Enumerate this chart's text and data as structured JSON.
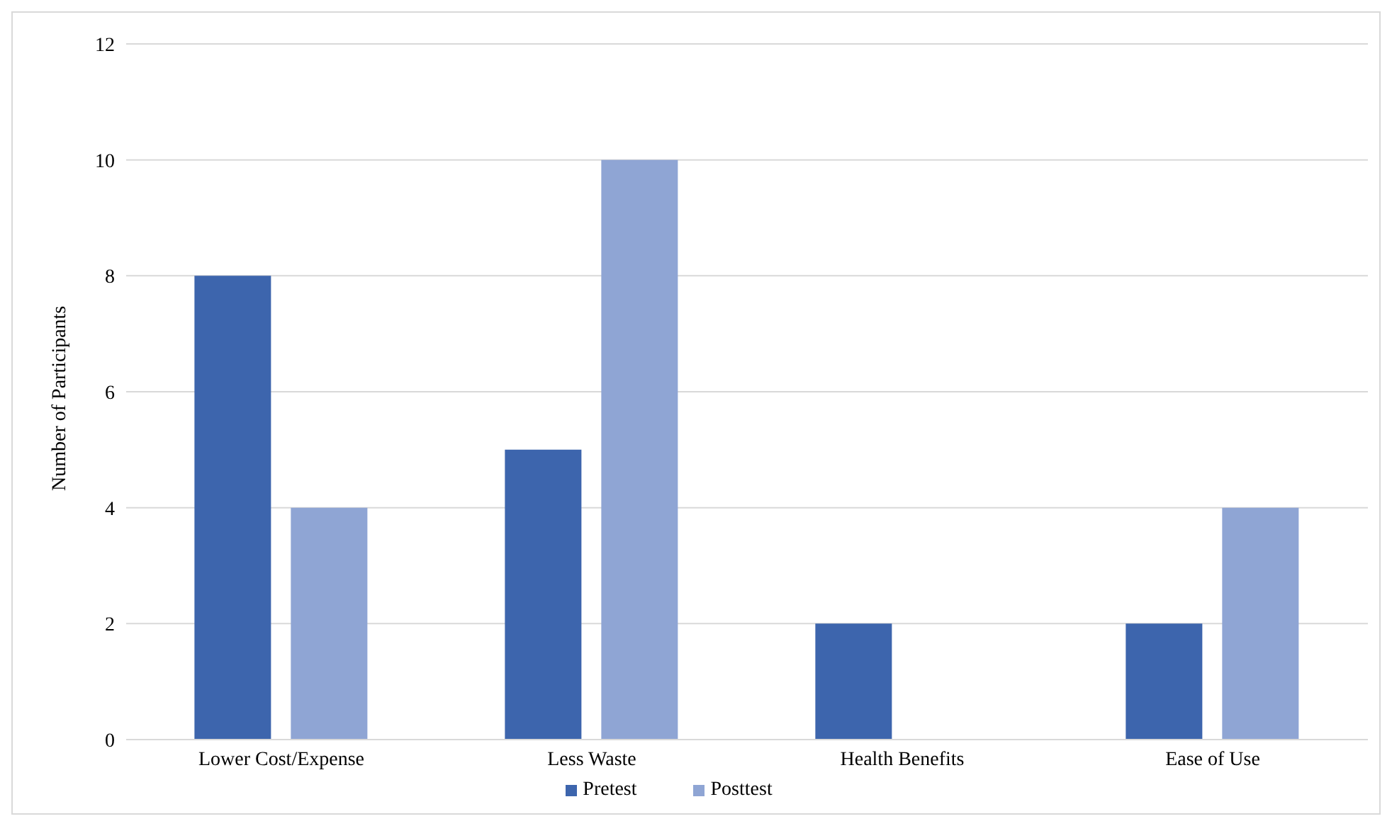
{
  "chart_data": {
    "type": "bar",
    "categories": [
      "Lower Cost/Expense",
      "Less Waste",
      "Health Benefits",
      "Ease of Use"
    ],
    "series": [
      {
        "name": "Pretest",
        "color": "#3d65ad",
        "values": [
          8,
          5,
          2,
          2
        ]
      },
      {
        "name": "Posttest",
        "color": "#8fa5d4",
        "values": [
          4,
          10,
          0,
          4
        ]
      }
    ],
    "ylabel": "Number of Participants",
    "ylim": [
      0,
      12
    ],
    "yticks": [
      0,
      2,
      4,
      6,
      8,
      10,
      12
    ],
    "grid": "y",
    "legend": "bottom"
  }
}
